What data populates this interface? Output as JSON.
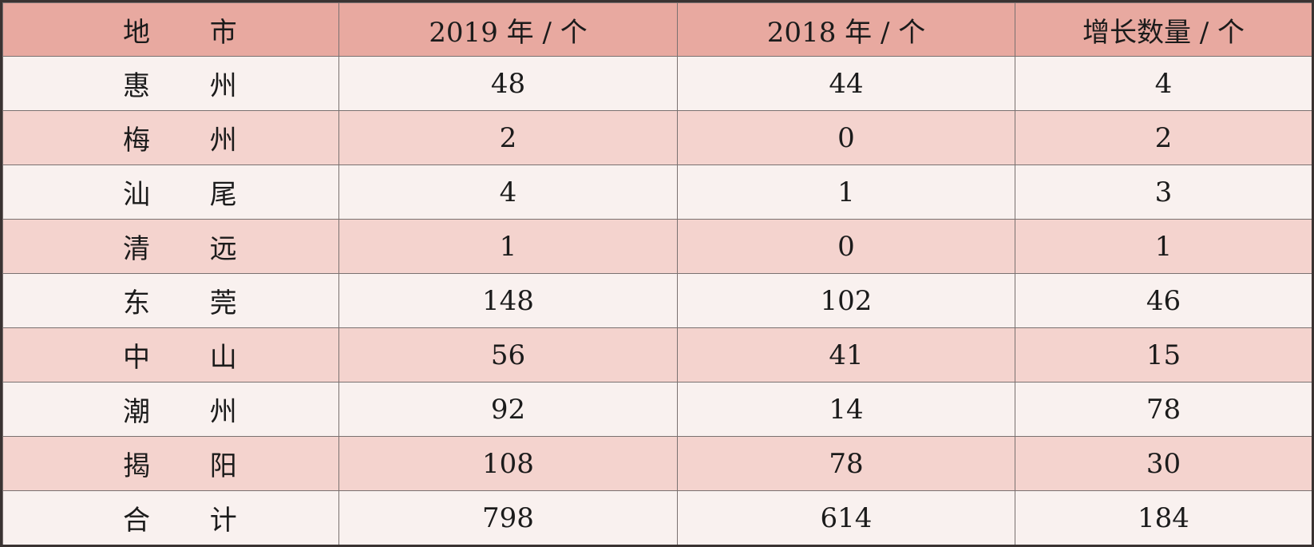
{
  "table": {
    "headers": [
      "地 市",
      "2019 年 / 个",
      "2018 年 / 个",
      "增长数量 / 个"
    ],
    "rows": [
      {
        "city": "惠 州",
        "y2019": "48",
        "y2018": "44",
        "growth": "4"
      },
      {
        "city": "梅 州",
        "y2019": "2",
        "y2018": "0",
        "growth": "2"
      },
      {
        "city": "汕 尾",
        "y2019": "4",
        "y2018": "1",
        "growth": "3"
      },
      {
        "city": "清 远",
        "y2019": "1",
        "y2018": "0",
        "growth": "1"
      },
      {
        "city": "东 莞",
        "y2019": "148",
        "y2018": "102",
        "growth": "46"
      },
      {
        "city": "中 山",
        "y2019": "56",
        "y2018": "41",
        "growth": "15"
      },
      {
        "city": "潮 州",
        "y2019": "92",
        "y2018": "14",
        "growth": "78"
      },
      {
        "city": "揭 阳",
        "y2019": "108",
        "y2018": "78",
        "growth": "30"
      },
      {
        "city": "合 计",
        "y2019": "798",
        "y2018": "614",
        "growth": "184"
      }
    ]
  },
  "colors": {
    "header_bg": "#e8a9a0",
    "row_light": "#f9f1ef",
    "row_dark": "#f4d3ce",
    "border": "#7a7170",
    "outer_border": "#3a3332"
  }
}
